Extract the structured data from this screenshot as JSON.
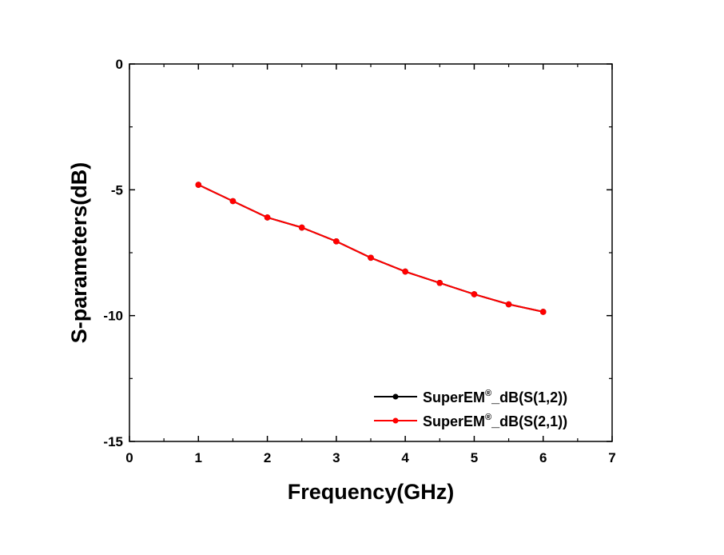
{
  "chart_data": {
    "type": "line",
    "xlabel": "Frequency(GHz)",
    "ylabel": "S-parameters(dB)",
    "xlim": [
      0,
      7
    ],
    "ylim": [
      -15,
      0
    ],
    "x_ticks": [
      "0",
      "1",
      "2",
      "3",
      "4",
      "5",
      "6",
      "7"
    ],
    "y_ticks": [
      "0",
      "-5",
      "-10",
      "-15"
    ],
    "grid": false,
    "legend_position": "bottom-right",
    "series": [
      {
        "name": "SuperEM®_dB(S(1,2))",
        "color": "#000000",
        "marker": "circle",
        "x": [
          1,
          1.5,
          2,
          2.5,
          3,
          3.5,
          4,
          4.5,
          5,
          5.5,
          6
        ],
        "values": [
          -4.8,
          -5.45,
          -6.1,
          -6.5,
          -7.05,
          -7.7,
          -8.25,
          -8.7,
          -9.15,
          -9.55,
          -9.85
        ]
      },
      {
        "name": "SuperEM®_dB(S(2,1))",
        "color": "#ff0000",
        "marker": "circle",
        "x": [
          1,
          1.5,
          2,
          2.5,
          3,
          3.5,
          4,
          4.5,
          5,
          5.5,
          6
        ],
        "values": [
          -4.8,
          -5.45,
          -6.1,
          -6.5,
          -7.05,
          -7.7,
          -8.25,
          -8.7,
          -9.15,
          -9.55,
          -9.85
        ]
      }
    ],
    "legend": [
      {
        "prefix": "SuperEM",
        "sup": "®",
        "suffix": "_dB(S(1,2))",
        "color": "#000000"
      },
      {
        "prefix": "SuperEM",
        "sup": "®",
        "suffix": "_dB(S(2,1))",
        "color": "#ff0000"
      }
    ]
  }
}
